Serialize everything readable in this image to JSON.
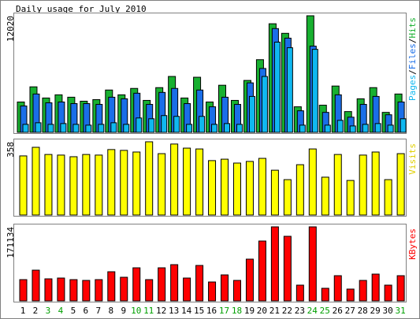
{
  "chart_data": [
    {
      "type": "bar",
      "title": "Daily usage for July 2010",
      "categories": [
        "1",
        "2",
        "3",
        "4",
        "5",
        "6",
        "7",
        "8",
        "9",
        "10",
        "11",
        "12",
        "13",
        "14",
        "15",
        "16",
        "17",
        "18",
        "19",
        "20",
        "21",
        "22",
        "23",
        "24",
        "25",
        "26",
        "27",
        "28",
        "29",
        "30",
        "31"
      ],
      "category_colors": [
        "#000000",
        "#000000",
        "#00a000",
        "#00a000",
        "#000000",
        "#000000",
        "#000000",
        "#000000",
        "#000000",
        "#00a000",
        "#00a000",
        "#000000",
        "#000000",
        "#000000",
        "#000000",
        "#000000",
        "#00a000",
        "#00a000",
        "#000000",
        "#000000",
        "#000000",
        "#000000",
        "#000000",
        "#00a000",
        "#00a000",
        "#000000",
        "#000000",
        "#000000",
        "#000000",
        "#000000",
        "#00a000"
      ],
      "series": [
        {
          "name": "Hits",
          "color": "#18b030",
          "values": [
            3128,
            4692,
            3540,
            3869,
            3622,
            3211,
            3375,
            4363,
            3869,
            4528,
            3293,
            4610,
            5763,
            3540,
            5681,
            3128,
            4857,
            3293,
            5351,
            7492,
            11196,
            10209,
            2634,
            12020,
            2799,
            4775,
            2141,
            3458,
            4610,
            2058,
            3952
          ]
        },
        {
          "name": "Files",
          "color": "#1a6ee8",
          "values": [
            2716,
            3951,
            3045,
            3127,
            2963,
            2963,
            2881,
            3621,
            3457,
            4033,
            2881,
            4115,
            4527,
            2963,
            4362,
            2634,
            3621,
            2881,
            5103,
            6584,
            10699,
            9711,
            2222,
            8888,
            2058,
            3868,
            1564,
            2881,
            3704,
            1811,
            3127
          ]
        },
        {
          "name": "Pages",
          "color": "#10b8f0",
          "values": [
            823,
            987,
            823,
            905,
            823,
            741,
            823,
            987,
            823,
            1481,
            1399,
            1728,
            1646,
            823,
            1646,
            823,
            905,
            823,
            3704,
            5761,
            9300,
            8724,
            741,
            8559,
            741,
            1235,
            658,
            823,
            905,
            741,
            1399
          ]
        }
      ],
      "ylim": [
        0,
        12020
      ],
      "yticks": [
        12020
      ]
    },
    {
      "type": "bar",
      "series": [
        {
          "name": "Visits",
          "color": "#ffff00",
          "values": [
            289,
            331,
            296,
            293,
            285,
            296,
            293,
            320,
            316,
            308,
            358,
            300,
            347,
            327,
            323,
            266,
            273,
            254,
            262,
            277,
            219,
            173,
            246,
            323,
            185,
            296,
            169,
            293,
            308,
            173,
            300
          ]
        }
      ],
      "ylim": [
        0,
        358
      ],
      "yticks": [
        358
      ]
    },
    {
      "type": "bar",
      "series": [
        {
          "name": "KBytes",
          "color": "#ff0000",
          "values": [
            49156,
            71003,
            50977,
            52797,
            49156,
            47336,
            49156,
            67362,
            54618,
            76466,
            49156,
            76466,
            83748,
            52797,
            81927,
            43694,
            60079,
            47336,
            96491,
            138366,
            171134,
            149289,
            36412,
            171134,
            29130,
            58259,
            27309,
            47336,
            61900,
            36412,
            58259
          ]
        }
      ],
      "ylim": [
        0,
        171134
      ],
      "yticks": [
        171134
      ]
    }
  ]
}
